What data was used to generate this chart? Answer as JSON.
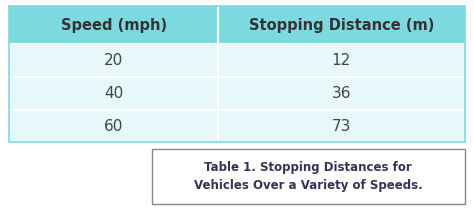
{
  "col_headers": [
    "Speed (mph)",
    "Stopping Distance (m)"
  ],
  "rows": [
    [
      "20",
      "12"
    ],
    [
      "40",
      "36"
    ],
    [
      "60",
      "73"
    ]
  ],
  "header_bg": "#7DD9E0",
  "row_bg": "#E8F8FA",
  "outer_bg": "#FFFFFF",
  "header_text_color": "#333333",
  "cell_text_color": "#444444",
  "caption_text": "Table 1. Stopping Distances for\nVehicles Over a Variety of Speeds.",
  "caption_text_color": "#333355",
  "caption_font_size": 8.5,
  "header_font_size": 10.5,
  "cell_font_size": 11,
  "figsize": [
    4.74,
    2.11
  ],
  "dpi": 100
}
